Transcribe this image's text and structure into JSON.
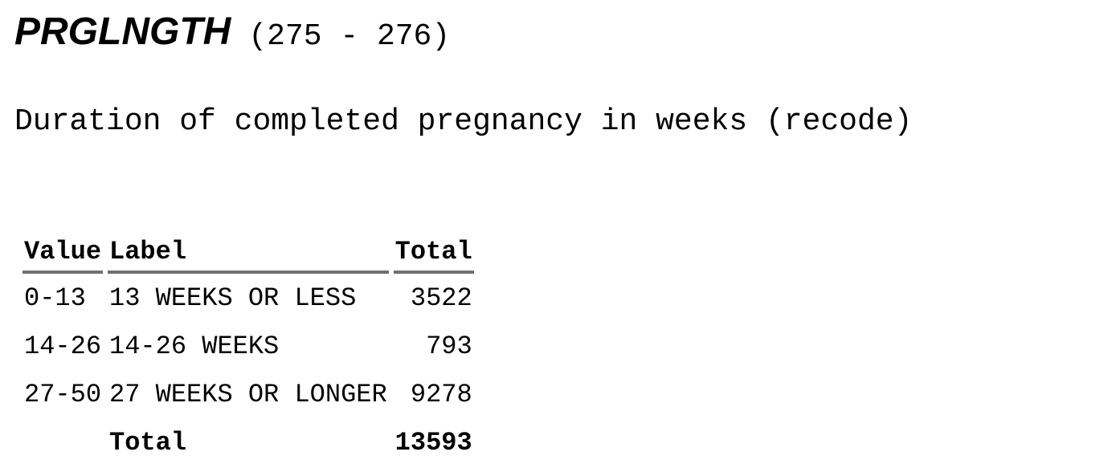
{
  "variable": {
    "name": "PRGLNGTH",
    "columns": "(275 - 276)",
    "description": "Duration of completed pregnancy in weeks (recode)"
  },
  "table": {
    "headers": [
      "Value",
      "Label",
      "Total"
    ],
    "rows": [
      {
        "value": "0-13",
        "label": "13 WEEKS OR LESS",
        "total": "3522"
      },
      {
        "value": "14-26",
        "label": "14-26 WEEKS",
        "total": "793"
      },
      {
        "value": "27-50",
        "label": "27 WEEKS OR LONGER",
        "total": "9278"
      }
    ],
    "total_row": {
      "value": "",
      "label": "Total",
      "total": "13593"
    }
  }
}
